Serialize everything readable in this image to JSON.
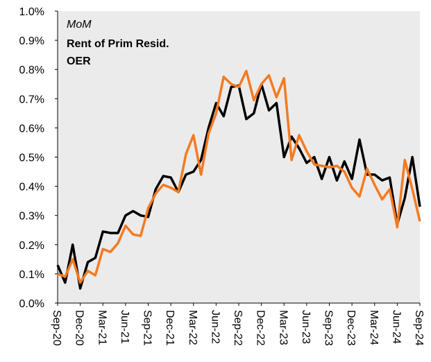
{
  "chart_data": {
    "type": "line",
    "annotation": "MoM",
    "categories": [
      "Sep-20",
      null,
      null,
      "Dec-20",
      null,
      null,
      "Mar-21",
      null,
      null,
      "Jun-21",
      null,
      null,
      "Sep-21",
      null,
      null,
      "Dec-21",
      null,
      null,
      "Mar-22",
      null,
      null,
      "Jun-22",
      null,
      null,
      "Sep-22",
      null,
      null,
      "Dec-22",
      null,
      null,
      "Mar-23",
      null,
      null,
      "Jun-23",
      null,
      null,
      "Sep-23",
      null,
      null,
      "Dec-23",
      null,
      null,
      "Mar-24",
      null,
      null,
      "Jun-24",
      null,
      null,
      "Sep-24"
    ],
    "series": [
      {
        "name": "Rent of Prim Resid.",
        "color": "#f47a20",
        "values": [
          0.1,
          0.09,
          0.15,
          0.07,
          0.11,
          0.095,
          0.185,
          0.175,
          0.205,
          0.265,
          0.235,
          0.23,
          0.325,
          0.375,
          0.405,
          0.395,
          0.38,
          0.51,
          0.575,
          0.44,
          0.58,
          0.65,
          0.775,
          0.75,
          0.74,
          0.795,
          0.695,
          0.75,
          0.78,
          0.705,
          0.77,
          0.49,
          0.575,
          0.52,
          0.475,
          0.47,
          0.465,
          0.47,
          0.45,
          0.395,
          0.365,
          0.46,
          0.405,
          0.355,
          0.39,
          0.26,
          0.49,
          0.39,
          0.28
        ]
      },
      {
        "name": "OER",
        "color": "#000000",
        "values": [
          0.13,
          0.07,
          0.2,
          0.05,
          0.14,
          0.155,
          0.245,
          0.24,
          0.24,
          0.3,
          0.315,
          0.3,
          0.295,
          0.39,
          0.435,
          0.43,
          0.38,
          0.44,
          0.45,
          0.49,
          0.6,
          0.685,
          0.64,
          0.74,
          0.745,
          0.63,
          0.65,
          0.75,
          0.66,
          0.685,
          0.5,
          0.57,
          0.53,
          0.48,
          0.5,
          0.425,
          0.5,
          0.42,
          0.485,
          0.425,
          0.56,
          0.44,
          0.44,
          0.42,
          0.43,
          0.27,
          0.36,
          0.5,
          0.33
        ]
      }
    ],
    "ylim": [
      0,
      1.0
    ],
    "yticks": [
      {
        "value": 0,
        "label": "0.0%"
      },
      {
        "value": 0.1,
        "label": "0.1%"
      },
      {
        "value": 0.2,
        "label": "0.2%"
      },
      {
        "value": 0.3,
        "label": "0.3%"
      },
      {
        "value": 0.4,
        "label": "0.4%"
      },
      {
        "value": 0.5,
        "label": "0.5%"
      },
      {
        "value": 0.6,
        "label": "0.6%"
      },
      {
        "value": 0.7,
        "label": "0.7%"
      },
      {
        "value": 0.8,
        "label": "0.8%"
      },
      {
        "value": 0.9,
        "label": "0.9%"
      },
      {
        "value": 1.0,
        "label": "1.0%"
      }
    ],
    "grid": false
  }
}
